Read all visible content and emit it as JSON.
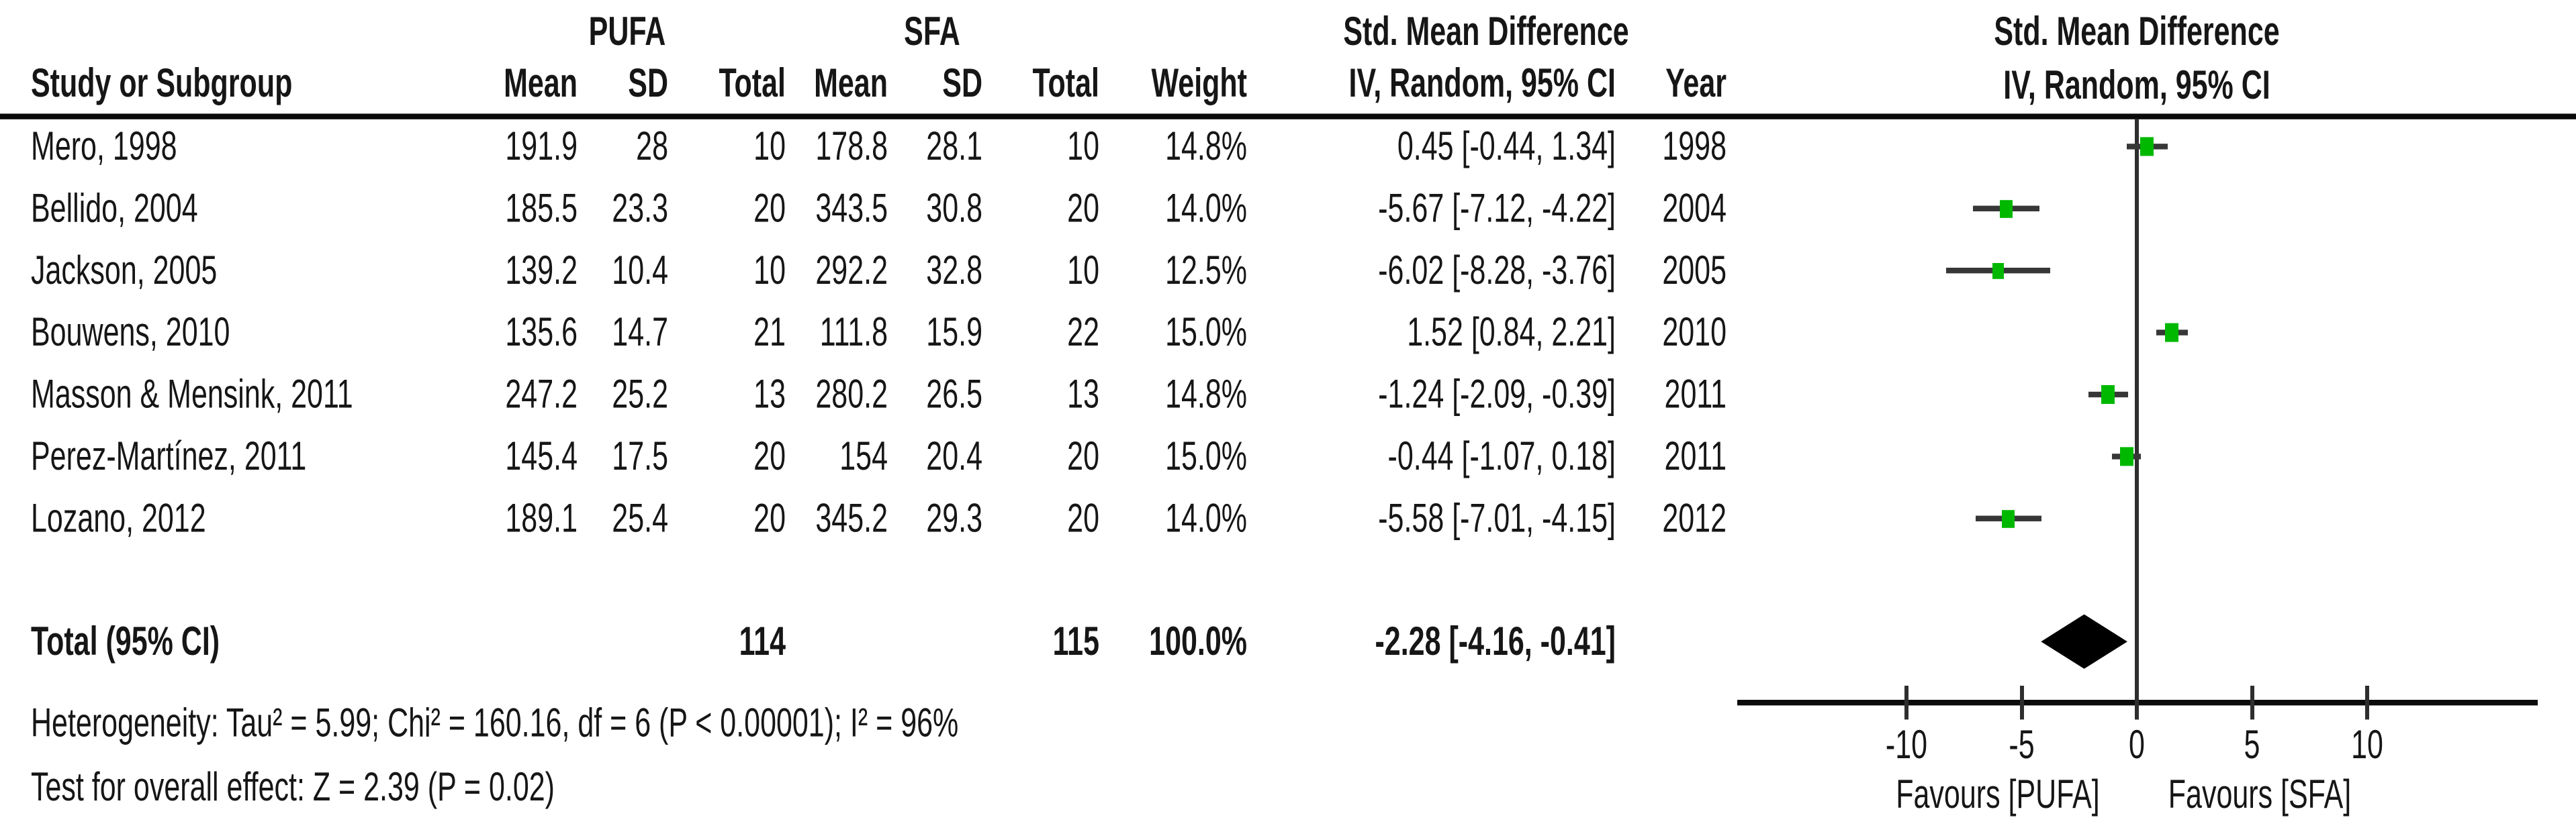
{
  "colors": {
    "marker_green": "#00b800",
    "ci_line": "#373737",
    "diamond": "#000000",
    "rule": "#0b0b0b",
    "text": "#161616"
  },
  "group_headers": {
    "pufa": "PUFA",
    "sfa": "SFA",
    "smd_left": "Std. Mean Difference",
    "smd_right": "Std. Mean Difference"
  },
  "column_headers": {
    "study": "Study or Subgroup",
    "mean_pufa": "Mean",
    "sd_pufa": "SD",
    "total_pufa": "Total",
    "mean_sfa": "Mean",
    "sd_sfa": "SD",
    "total_sfa": "Total",
    "weight": "Weight",
    "method_left": "IV, Random, 95% CI",
    "year": "Year",
    "method_right": "IV, Random, 95% CI"
  },
  "studies": [
    {
      "name": "Mero, 1998",
      "pufa_mean": "191.9",
      "pufa_sd": "28",
      "pufa_total": "10",
      "sfa_mean": "178.8",
      "sfa_sd": "28.1",
      "sfa_total": "10",
      "weight": "14.8%",
      "ci_text": "0.45 [-0.44, 1.34]",
      "year": "1998",
      "smd": 0.45,
      "lo": -0.44,
      "hi": 1.34,
      "weight_pct": 14.8
    },
    {
      "name": "Bellido, 2004",
      "pufa_mean": "185.5",
      "pufa_sd": "23.3",
      "pufa_total": "20",
      "sfa_mean": "343.5",
      "sfa_sd": "30.8",
      "sfa_total": "20",
      "weight": "14.0%",
      "ci_text": "-5.67 [-7.12, -4.22]",
      "year": "2004",
      "smd": -5.67,
      "lo": -7.12,
      "hi": -4.22,
      "weight_pct": 14.0
    },
    {
      "name": "Jackson, 2005",
      "pufa_mean": "139.2",
      "pufa_sd": "10.4",
      "pufa_total": "10",
      "sfa_mean": "292.2",
      "sfa_sd": "32.8",
      "sfa_total": "10",
      "weight": "12.5%",
      "ci_text": "-6.02 [-8.28, -3.76]",
      "year": "2005",
      "smd": -6.02,
      "lo": -8.28,
      "hi": -3.76,
      "weight_pct": 12.5
    },
    {
      "name": "Bouwens, 2010",
      "pufa_mean": "135.6",
      "pufa_sd": "14.7",
      "pufa_total": "21",
      "sfa_mean": "111.8",
      "sfa_sd": "15.9",
      "sfa_total": "22",
      "weight": "15.0%",
      "ci_text": "1.52 [0.84, 2.21]",
      "year": "2010",
      "smd": 1.52,
      "lo": 0.84,
      "hi": 2.21,
      "weight_pct": 15.0
    },
    {
      "name": "Masson & Mensink, 2011",
      "pufa_mean": "247.2",
      "pufa_sd": "25.2",
      "pufa_total": "13",
      "sfa_mean": "280.2",
      "sfa_sd": "26.5",
      "sfa_total": "13",
      "weight": "14.8%",
      "ci_text": "-1.24 [-2.09, -0.39]",
      "year": "2011",
      "smd": -1.24,
      "lo": -2.09,
      "hi": -0.39,
      "weight_pct": 14.8
    },
    {
      "name": "Perez-Martínez, 2011",
      "pufa_mean": "145.4",
      "pufa_sd": "17.5",
      "pufa_total": "20",
      "sfa_mean": "154",
      "sfa_sd": "20.4",
      "sfa_total": "20",
      "weight": "15.0%",
      "ci_text": "-0.44 [-1.07, 0.18]",
      "year": "2011",
      "smd": -0.44,
      "lo": -1.07,
      "hi": 0.18,
      "weight_pct": 15.0
    },
    {
      "name": "Lozano, 2012",
      "pufa_mean": "189.1",
      "pufa_sd": "25.4",
      "pufa_total": "20",
      "sfa_mean": "345.2",
      "sfa_sd": "29.3",
      "sfa_total": "20",
      "weight": "14.0%",
      "ci_text": "-5.58 [-7.01, -4.15]",
      "year": "2012",
      "smd": -5.58,
      "lo": -7.01,
      "hi": -4.15,
      "weight_pct": 14.0
    }
  ],
  "total": {
    "label": "Total (95% CI)",
    "pufa_total": "114",
    "sfa_total": "115",
    "weight": "100.0%",
    "ci_text": "-2.28 [-4.16, -0.41]",
    "smd": -2.28,
    "lo": -4.16,
    "hi": -0.41
  },
  "footer": {
    "heterogeneity": "Heterogeneity: Tau² = 5.99; Chi² = 160.16, df = 6 (P < 0.00001); I² = 96%",
    "overall_effect": "Test for overall effect: Z = 2.39 (P = 0.02)"
  },
  "axis": {
    "ticks": [
      -10,
      -5,
      0,
      5,
      10
    ],
    "tick_labels": [
      "-10",
      "-5",
      "0",
      "5",
      "10"
    ],
    "favours_left": "Favours [PUFA]",
    "favours_right": "Favours [SFA]"
  },
  "chart_data": {
    "type": "scatter",
    "subtype": "forest-plot",
    "title": "Std. Mean Difference, IV, Random, 95% CI",
    "effect_measure": "Std. Mean Difference",
    "model": "IV, Random, 95% CI",
    "xlim": [
      -17.3,
      17.3
    ],
    "x_ticks": [
      -10,
      -5,
      0,
      5,
      10
    ],
    "xlabel_left": "Favours [PUFA]",
    "xlabel_right": "Favours [SFA]",
    "categories": [
      "Mero, 1998",
      "Bellido, 2004",
      "Jackson, 2005",
      "Bouwens, 2010",
      "Masson & Mensink, 2011",
      "Perez-Martínez, 2011",
      "Lozano, 2012"
    ],
    "series": [
      {
        "name": "SMD",
        "values": [
          0.45,
          -5.67,
          -6.02,
          1.52,
          -1.24,
          -0.44,
          -5.58
        ]
      },
      {
        "name": "CI_lower",
        "values": [
          -0.44,
          -7.12,
          -8.28,
          0.84,
          -2.09,
          -1.07,
          -7.01
        ]
      },
      {
        "name": "CI_upper",
        "values": [
          1.34,
          -4.22,
          -3.76,
          2.21,
          -0.39,
          0.18,
          -4.15
        ]
      },
      {
        "name": "Weight_pct",
        "values": [
          14.8,
          14.0,
          12.5,
          15.0,
          14.8,
          15.0,
          14.0
        ]
      }
    ],
    "totals": {
      "label": "Total (95% CI)",
      "n_pufa": 114,
      "n_sfa": 115,
      "smd": -2.28,
      "ci": [
        -4.16,
        -0.41
      ],
      "weight_pct": 100.0
    },
    "heterogeneity": {
      "tau2": 5.99,
      "chi2": 160.16,
      "df": 6,
      "p": "< 0.00001",
      "i2_pct": 96
    },
    "overall_effect": {
      "z": 2.39,
      "p": 0.02
    },
    "legend_position": "none",
    "grid": false
  }
}
